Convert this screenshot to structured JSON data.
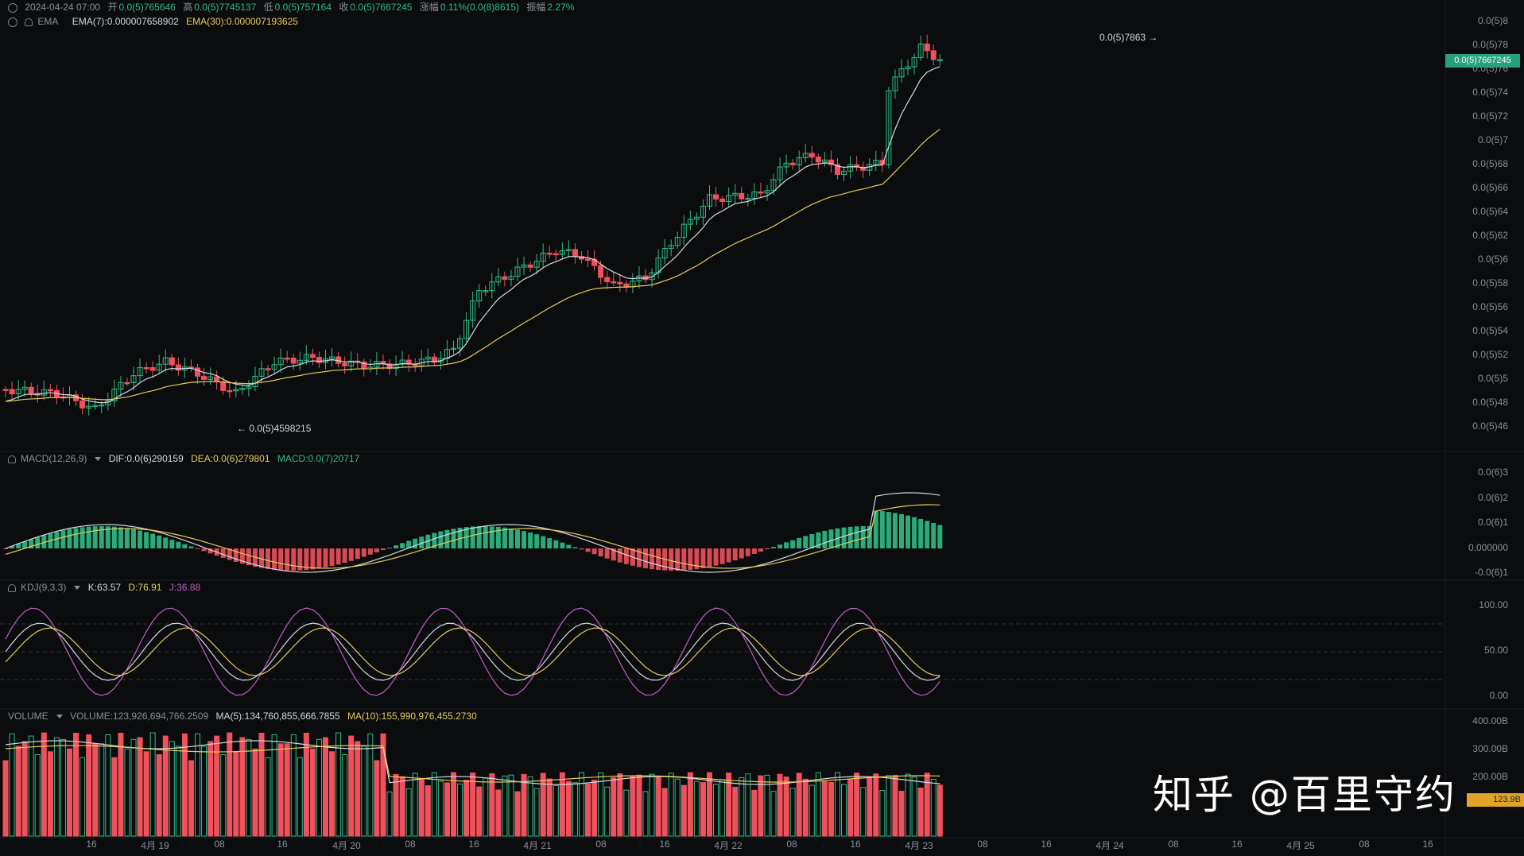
{
  "ohlc_header": {
    "datetime": "2024-04-24 07:00",
    "open_label": "开",
    "open": "0.0(5)765646",
    "high_label": "高",
    "high": "0.0(5)7745137",
    "low_label": "低",
    "low": "0.0(5)757164",
    "close_label": "收",
    "close": "0.0(5)7667245",
    "change_label": "涨幅",
    "change": "0.11%(0.0(8)8615)",
    "amplitude_label": "振幅",
    "amplitude": "2.27%"
  },
  "ema_header": {
    "name": "EMA",
    "ema7": "EMA(7):0.000007658902",
    "ema30": "EMA(30):0.000007193625"
  },
  "macd_header": {
    "name": "MACD(12,26,9)",
    "dif": "DIF:0.0(6)290159",
    "dea": "DEA:0.0(6)279801",
    "macd": "MACD:0.0(7)20717"
  },
  "kdj_header": {
    "name": "KDJ(9,3,3)",
    "k": "K:63.57",
    "d": "D:76.91",
    "j": "J:36.88"
  },
  "volume_header": {
    "name": "VOLUME",
    "volume": "VOLUME:123,926,694,766.2509",
    "ma5": "MA(5):134,760,855,666.7855",
    "ma10": "MA(10):155,990,976,455.2730"
  },
  "price_axis": [
    "0.0(5)8",
    "0.0(5)78",
    "0.0(5)76",
    "0.0(5)74",
    "0.0(5)72",
    "0.0(5)7",
    "0.0(5)68",
    "0.0(5)66",
    "0.0(5)64",
    "0.0(5)62",
    "0.0(5)6",
    "0.0(5)58",
    "0.0(5)56",
    "0.0(5)54",
    "0.0(5)52",
    "0.0(5)5",
    "0.0(5)48",
    "0.0(5)46"
  ],
  "macd_axis": [
    "0.0(6)3",
    "0.0(6)2",
    "0.0(6)1",
    "0.000000",
    "-0.0(6)1"
  ],
  "kdj_axis": [
    "100.00",
    "50.00",
    "0.00"
  ],
  "volume_axis": [
    "400.00B",
    "300.00B",
    "200.00B"
  ],
  "current_price_tag": "0.0(5)7667245",
  "volume_tag": "123.9B",
  "high_note": "0.0(5)7863 →",
  "low_note": "← 0.0(5)4598215",
  "x_axis": [
    "16",
    "4月 19",
    "08",
    "16",
    "4月 20",
    "08",
    "16",
    "4月 21",
    "08",
    "16",
    "4月 22",
    "08",
    "16",
    "4月 23",
    "08",
    "16",
    "4月 24",
    "08",
    "16",
    "4月 25",
    "08",
    "16"
  ],
  "watermark": "知乎 @百里守约",
  "colors": {
    "up": "#2ebd85",
    "down": "#f0515c",
    "ema7": "#d6d8dc",
    "ema30": "#e6cb5a",
    "kdj_j": "#c05fc0",
    "background": "#0b0c0e"
  }
}
